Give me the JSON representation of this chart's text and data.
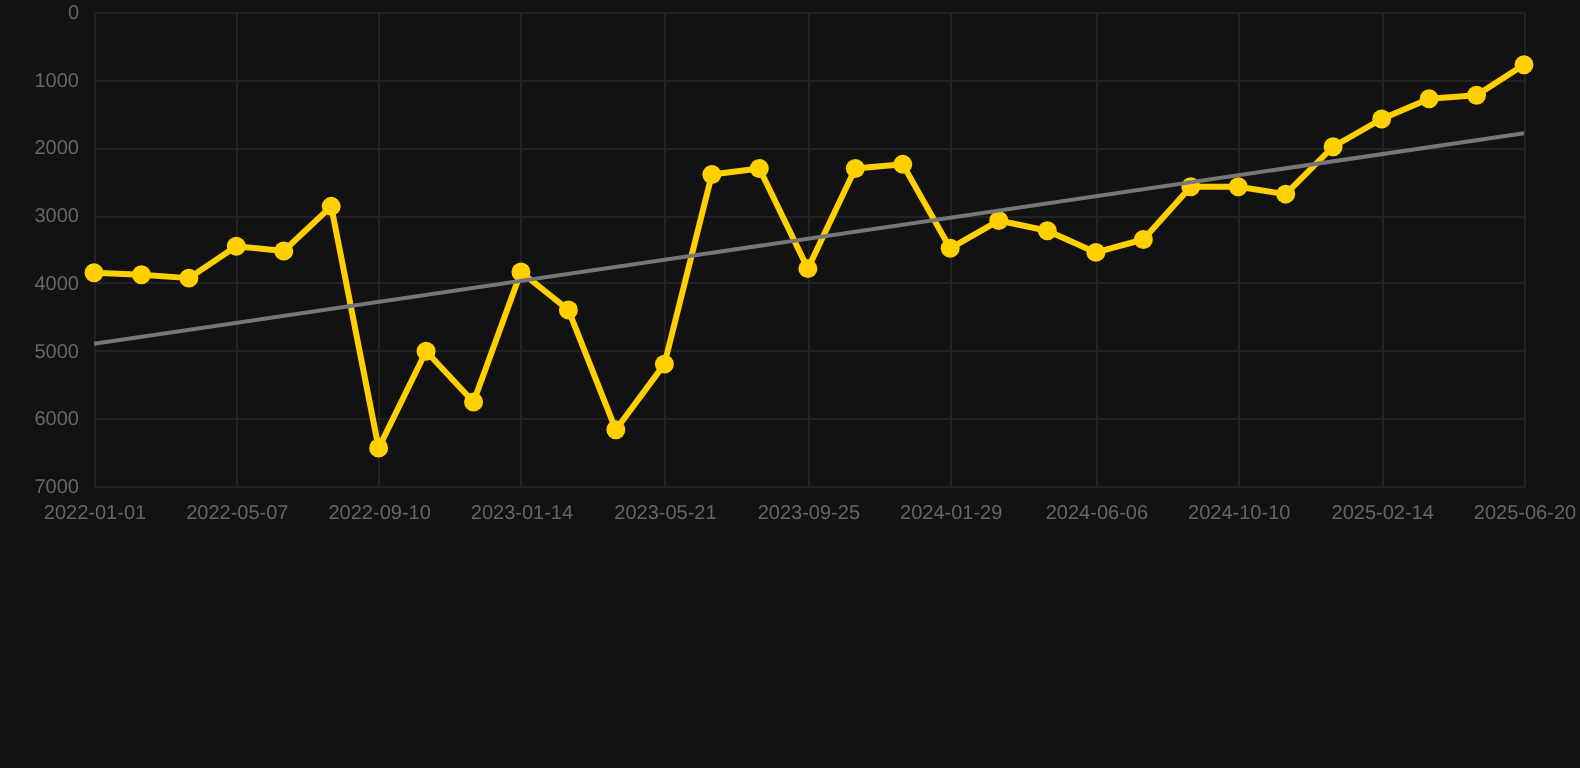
{
  "chart_data": {
    "type": "line",
    "x": [
      "2022-01-01",
      "2022-02-12",
      "2022-03-26",
      "2022-05-07",
      "2022-06-18",
      "2022-07-30",
      "2022-09-10",
      "2022-10-22",
      "2022-12-03",
      "2023-01-14",
      "2023-02-25",
      "2023-04-08",
      "2023-05-21",
      "2023-07-02",
      "2023-08-13",
      "2023-09-25",
      "2023-11-06",
      "2023-12-18",
      "2024-01-29",
      "2024-03-12",
      "2024-04-24",
      "2024-06-06",
      "2024-07-18",
      "2024-08-29",
      "2024-10-10",
      "2024-11-21",
      "2025-01-02",
      "2025-02-14",
      "2025-03-28",
      "2025-05-09",
      "2025-06-20"
    ],
    "series": [
      {
        "color": "#ffd000",
        "values": [
          3850,
          3880,
          3930,
          3460,
          3530,
          2870,
          6440,
          5010,
          5760,
          3840,
          4400,
          6170,
          5200,
          2400,
          2310,
          3790,
          2310,
          2250,
          3490,
          3080,
          3230,
          3550,
          3360,
          2580,
          2580,
          2690,
          1990,
          1580,
          1280,
          1230,
          780
        ]
      },
      {
        "type": "line",
        "marker": "none",
        "color": "#777777",
        "x": [
          "2022-01-01",
          "2025-06-20"
        ],
        "values": [
          4900,
          1790
        ]
      }
    ],
    "marker": "circle",
    "xlim": [
      "2022-01-01",
      "2025-06-20"
    ],
    "xticks": [
      "2022-01-01",
      "2022-05-07",
      "2022-09-10",
      "2023-01-14",
      "2023-05-21",
      "2023-09-25",
      "2024-01-29",
      "2024-06-06",
      "2024-10-10",
      "2025-02-14",
      "2025-06-20"
    ],
    "ylim": [
      7000,
      0
    ],
    "yticks": [
      0,
      1000,
      2000,
      3000,
      4000,
      5000,
      6000,
      7000
    ],
    "grid": true
  }
}
